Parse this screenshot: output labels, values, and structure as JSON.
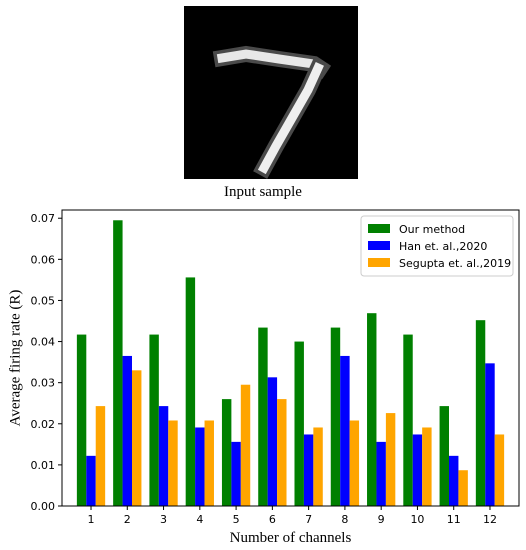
{
  "input_sample": {
    "caption": "Input sample"
  },
  "chart_data": {
    "type": "bar",
    "title": "",
    "xlabel": "Number of channels",
    "ylabel": "Average firing rate (R)",
    "ylim": [
      0,
      0.072
    ],
    "yticks": [
      "0.00",
      "0.01",
      "0.02",
      "0.03",
      "0.04",
      "0.05",
      "0.06",
      "0.07"
    ],
    "categories": [
      "1",
      "2",
      "3",
      "4",
      "5",
      "6",
      "7",
      "8",
      "9",
      "10",
      "11",
      "12"
    ],
    "grid": false,
    "legend_position": "top-right",
    "series": [
      {
        "name": "Our method",
        "color": "#008000",
        "values": [
          0.0417,
          0.0695,
          0.0417,
          0.0556,
          0.026,
          0.0434,
          0.04,
          0.0434,
          0.0469,
          0.0417,
          0.0243,
          0.0452
        ]
      },
      {
        "name": "Han et. al.,2020",
        "color": "#0000ff",
        "values": [
          0.0122,
          0.0365,
          0.0243,
          0.0191,
          0.0156,
          0.0313,
          0.0174,
          0.0365,
          0.0156,
          0.0174,
          0.0122,
          0.0347
        ]
      },
      {
        "name": "Segupta et. al.,2019",
        "color": "#ffa500",
        "values": [
          0.0243,
          0.033,
          0.0208,
          0.0208,
          0.0295,
          0.026,
          0.0191,
          0.0208,
          0.0226,
          0.0191,
          0.0087,
          0.0174
        ]
      }
    ]
  }
}
